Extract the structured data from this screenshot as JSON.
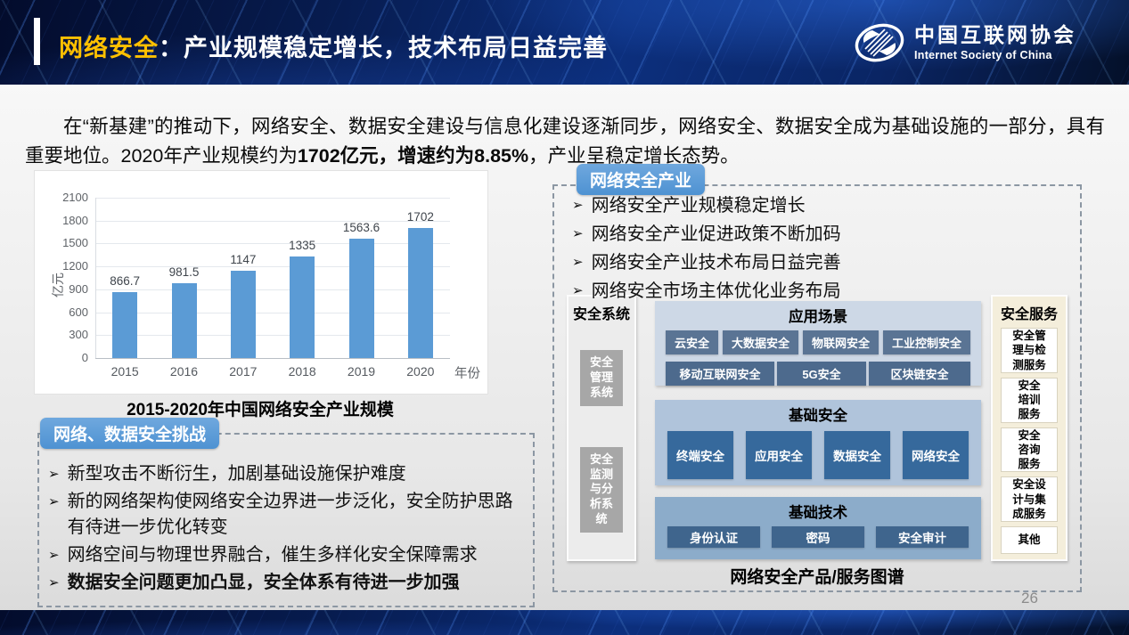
{
  "header": {
    "title_highlight": "网络安全",
    "title_rest": "：产业规模稳定增长，技术布局日益完善",
    "logo_cn": "中国互联网协会",
    "logo_en": "Internet Society of China"
  },
  "intro": {
    "segments": [
      {
        "text": "在“新基建”的推动下，网络安全、数据安全建设与信息化建设逐渐同步，网络安全、数据安全成为基础设施的一部分，具有重要地位。2020年产业规模约为",
        "bold": false
      },
      {
        "text": "1702亿元，增速约为8.85%",
        "bold": true
      },
      {
        "text": "，产业呈稳定增长态势。",
        "bold": false
      }
    ]
  },
  "chart_data": {
    "type": "bar",
    "title": "2015-2020年中国网络安全产业规模",
    "categories": [
      "2015",
      "2016",
      "2017",
      "2018",
      "2019",
      "2020"
    ],
    "values": [
      866.7,
      981.5,
      1147,
      1335,
      1563.6,
      1702
    ],
    "ylabel": "亿元",
    "xlabel": "年份",
    "ylim": [
      0,
      2100
    ],
    "yticks": [
      0,
      300,
      600,
      900,
      1200,
      1500,
      1800,
      2100
    ],
    "bar_color": "#5B9BD5",
    "grid": true,
    "legend": false
  },
  "industry_panel": {
    "badge": "网络安全产业",
    "bullets": [
      {
        "text": "网络安全产业规模稳定增长",
        "bold": false
      },
      {
        "text": "网络安全产业促进政策不断加码",
        "bold": false
      },
      {
        "text": "网络安全产业技术布局日益完善",
        "bold": false
      },
      {
        "text": "网络安全市场主体优化业务布局",
        "bold": false
      }
    ]
  },
  "challenges_panel": {
    "badge": "网络、数据安全挑战",
    "bullets": [
      {
        "text": "新型攻击不断衍生，加剧基础设施保护难度",
        "bold": false
      },
      {
        "text": "新的网络架构使网络安全边界进一步泛化，安全防护思路有待进一步优化转变",
        "bold": false
      },
      {
        "text": "网络空间与物理世界融合，催生多样化安全保障需求",
        "bold": false
      },
      {
        "text": "数据安全问题更加凸显，安全体系有待进一步加强",
        "bold": true
      }
    ]
  },
  "diagram": {
    "caption": "网络安全产品/服务图谱",
    "systems_column": {
      "title": "安全系统",
      "items": [
        {
          "label": "安全管理系统",
          "lines": "安全\n管理\n系统"
        },
        {
          "label": "安全监测与分析系统",
          "lines": "安全\n监测\n与分\n析系\n统"
        }
      ]
    },
    "app_scenarios": {
      "title": "应用场景",
      "row1": [
        "云安全",
        "大数据安全",
        "物联网安全",
        "工业控制安全"
      ],
      "row2": [
        "移动互联网安全",
        "5G安全",
        "区块链安全"
      ]
    },
    "basic_security": {
      "title": "基础安全",
      "items": [
        "终端安全",
        "应用安全",
        "数据安全",
        "网络安全"
      ]
    },
    "basic_tech": {
      "title": "基础技术",
      "items": [
        "身份认证",
        "密码",
        "安全审计"
      ]
    },
    "services_column": {
      "title": "安全服务",
      "items": [
        {
          "label": "安全管理与检测服务",
          "lines": "安全管\n理与检\n测服务"
        },
        {
          "label": "安全培训服务",
          "lines": "安全\n培训\n服务"
        },
        {
          "label": "安全咨询服务",
          "lines": "安全\n咨询\n服务"
        },
        {
          "label": "安全设计与集成服务",
          "lines": "安全设\n计与集\n成服务"
        },
        {
          "label": "其他",
          "lines": "其他"
        }
      ]
    }
  },
  "footer": {
    "page_number": "26"
  },
  "colors": {
    "title_highlight": "#FFC000",
    "badge_blue": "#5B9BD5",
    "bar_blue": "#5B9BD5",
    "header_navy": "#0A2564"
  }
}
